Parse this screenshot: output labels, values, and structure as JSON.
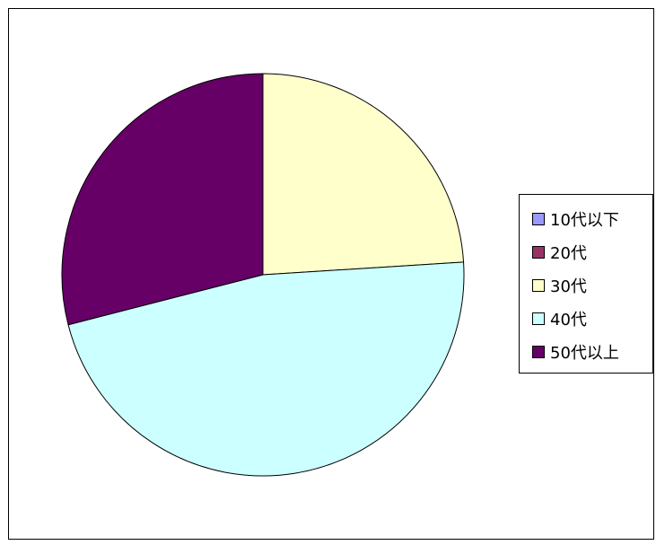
{
  "chart_data": {
    "type": "pie",
    "categories": [
      "10代以下",
      "20代",
      "30代",
      "40代",
      "50代以上"
    ],
    "values": [
      0,
      0,
      24,
      47,
      29
    ],
    "colors": [
      "#9999ff",
      "#993366",
      "#ffffcc",
      "#ccffff",
      "#660066"
    ],
    "start": "12 o'clock, clockwise",
    "legend_position": "right"
  }
}
